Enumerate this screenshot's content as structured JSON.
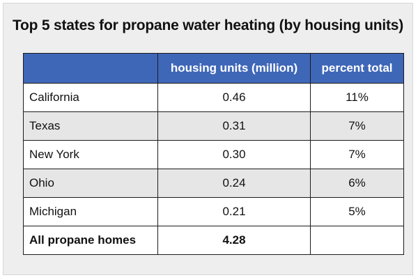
{
  "chart_data": {
    "type": "table",
    "title": "Top 5 states for propane water heating (by housing units)",
    "columns": [
      "",
      "housing units (million)",
      "percent total"
    ],
    "rows": [
      {
        "state": "California",
        "housing_units": "0.46",
        "percent": "11%"
      },
      {
        "state": "Texas",
        "housing_units": "0.31",
        "percent": "7%"
      },
      {
        "state": "New York",
        "housing_units": "0.30",
        "percent": "7%"
      },
      {
        "state": "Ohio",
        "housing_units": "0.24",
        "percent": "6%"
      },
      {
        "state": "Michigan",
        "housing_units": "0.21",
        "percent": "5%"
      }
    ],
    "total": {
      "label": "All propane homes",
      "housing_units": "4.28",
      "percent": ""
    },
    "colors": {
      "header": "#3f67b8",
      "row_alt": "#e6e6e6"
    }
  }
}
